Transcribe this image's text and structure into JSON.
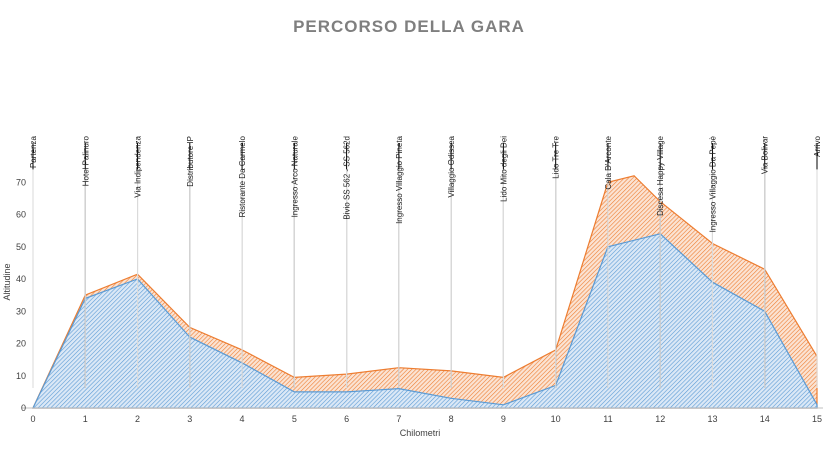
{
  "chart_data": {
    "type": "area",
    "title": "PERCORSO DELLA GARA",
    "xlabel": "Chilometri",
    "ylabel": "Altitudine",
    "xlim": [
      0,
      15
    ],
    "ylim": [
      0,
      80
    ],
    "x_ticks": [
      "0",
      "1",
      "2",
      "3",
      "4",
      "5",
      "6",
      "7",
      "8",
      "9",
      "10",
      "11",
      "12",
      "13",
      "14",
      "15"
    ],
    "y_ticks": [
      "0",
      "10",
      "20",
      "30",
      "40",
      "50",
      "60",
      "70"
    ],
    "grid": false,
    "series": [
      {
        "color": "#5b9bd5",
        "pattern": "diagonal-hatch",
        "x": [
          0,
          1,
          2,
          3,
          4,
          5,
          6,
          7,
          8,
          9,
          10,
          11,
          12,
          13,
          14,
          15
        ],
        "values": [
          0,
          34,
          40,
          22,
          14,
          5,
          5,
          6,
          3,
          1,
          7,
          50,
          54,
          39,
          30,
          1
        ]
      },
      {
        "color": "#ed7d31",
        "pattern": "diagonal-hatch",
        "x": [
          0,
          1,
          2,
          3,
          4,
          5,
          6,
          7,
          8,
          9,
          10,
          11,
          11.5,
          12,
          13,
          14,
          15
        ],
        "values": [
          0,
          35,
          41.5,
          25,
          18,
          9.5,
          10.5,
          12.5,
          11.5,
          9.5,
          18,
          70,
          72,
          64,
          51,
          43,
          16
        ]
      }
    ],
    "locations": [
      {
        "km": 0,
        "name": "Partenza"
      },
      {
        "km": 1,
        "name": "Hotel Palinuro"
      },
      {
        "km": 2,
        "name": "Via Indipendenza"
      },
      {
        "km": 3,
        "name": "Distributore IP"
      },
      {
        "km": 4,
        "name": "Ristorante Da Carmelo"
      },
      {
        "km": 5,
        "name": "Ingresso Arco Naturale"
      },
      {
        "km": 6,
        "name": "Bivio SS 562 - SS 562d"
      },
      {
        "km": 7,
        "name": "Ingresso Villaggio Pineta"
      },
      {
        "km": 8,
        "name": "Villaggio Odissea"
      },
      {
        "km": 9,
        "name": "Lido Mito degli Dei"
      },
      {
        "km": 10,
        "name": "Lido Tre Tre"
      },
      {
        "km": 11,
        "name": "Cala D'Arconte"
      },
      {
        "km": 12,
        "name": "Discesa Happy Village"
      },
      {
        "km": 13,
        "name": "Ingresso Villaggio Da Pepè"
      },
      {
        "km": 14,
        "name": "Via Bolivar"
      },
      {
        "km": 15,
        "name": "Arrivo"
      }
    ]
  }
}
